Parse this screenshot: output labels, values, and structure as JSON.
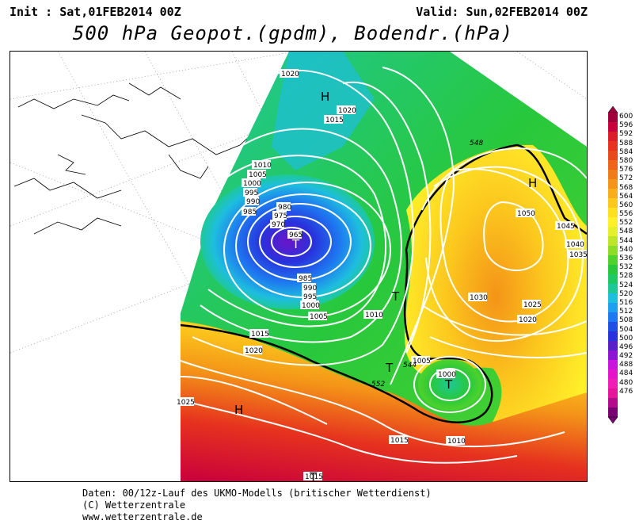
{
  "header": {
    "init": "Init : Sat,01FEB2014 00Z",
    "valid": "Valid: Sun,02FEB2014 00Z",
    "title": "500 hPa Geopot.(gpdm), Bodendr.(hPa)"
  },
  "footer": {
    "line1": "Daten: 00/12z-Lauf des UKMO-Modells (britischer Wetterdienst)",
    "line2": "(C) Wetterzentrale",
    "line3": "www.wetterzentrale.de"
  },
  "colorbar": {
    "labels": [
      "600",
      "596",
      "592",
      "588",
      "584",
      "580",
      "576",
      "572",
      "568",
      "564",
      "560",
      "556",
      "552",
      "548",
      "544",
      "540",
      "536",
      "532",
      "528",
      "524",
      "520",
      "516",
      "512",
      "508",
      "504",
      "500",
      "496",
      "492",
      "488",
      "484",
      "480",
      "476"
    ],
    "colors": [
      "#a0003a",
      "#c8003c",
      "#dc1e28",
      "#e6321e",
      "#e84a1c",
      "#ee641a",
      "#f07c18",
      "#f49418",
      "#f8ae1c",
      "#fcc81e",
      "#ffe01e",
      "#fff02a",
      "#e6f02a",
      "#bee628",
      "#8cdc28",
      "#50d22c",
      "#28c83c",
      "#1ec864",
      "#1ec896",
      "#1ebede",
      "#1ea0f0",
      "#1e78f0",
      "#1e50e6",
      "#2832dc",
      "#5a1ec8",
      "#8c14d2",
      "#c814dc",
      "#e614c8",
      "#f01eb4",
      "#e6149b",
      "#b40a8c",
      "#780070"
    ]
  },
  "map": {
    "highs": [
      "H",
      "H",
      "H"
    ],
    "lows": [
      "T",
      "T",
      "T",
      "T",
      "T"
    ],
    "isobar_labels": [
      "1020",
      "1020",
      "1015",
      "1010",
      "1005",
      "1000",
      "995",
      "990",
      "985",
      "980",
      "975",
      "970",
      "965",
      "985",
      "990",
      "995",
      "1000",
      "1005",
      "1010",
      "1015",
      "1020",
      "1025",
      "1050",
      "1045",
      "1040",
      "1035",
      "1030",
      "1025",
      "1020",
      "1005",
      "1000",
      "1010",
      "1015",
      "1015"
    ],
    "contour_labels": [
      "548",
      "544",
      "552"
    ]
  }
}
